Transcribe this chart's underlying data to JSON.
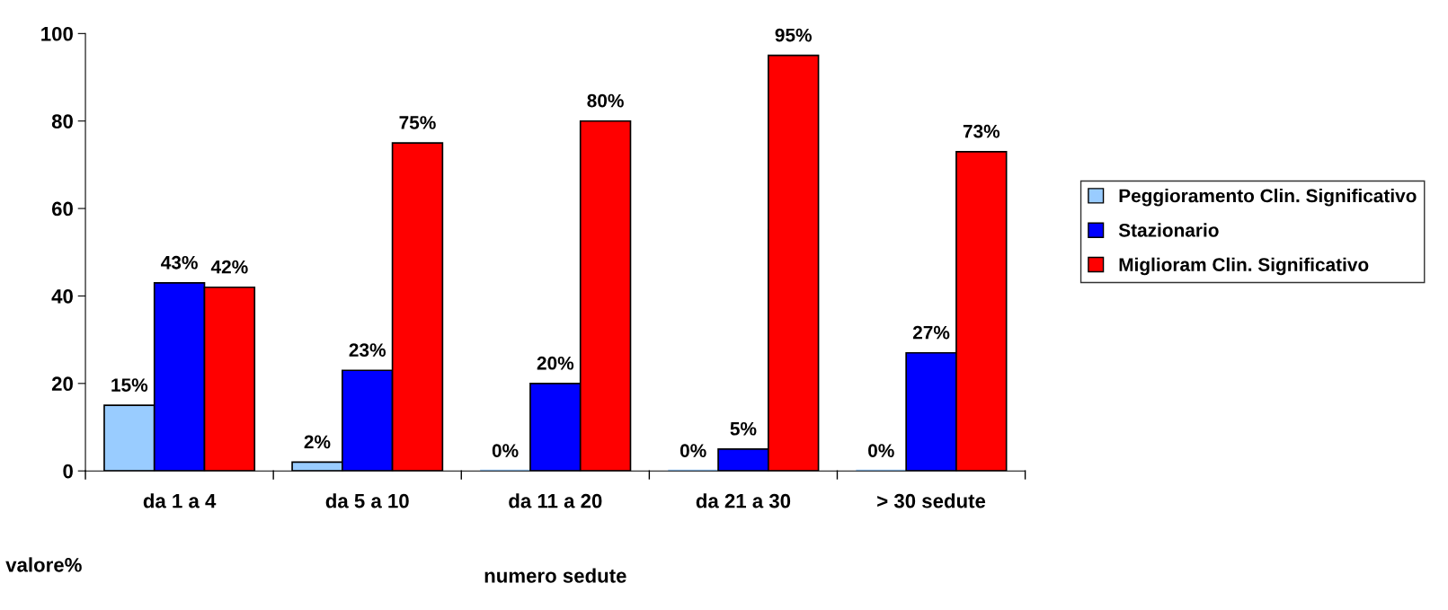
{
  "chart_data": {
    "type": "bar",
    "categories": [
      "da 1 a 4",
      "da 5 a 10",
      "da 11 a 20",
      "da 21 a 30",
      "> 30 sedute"
    ],
    "series": [
      {
        "name": "Peggioramento Clin. Significativo",
        "color": "#99ccff",
        "values": [
          15,
          2,
          0,
          0,
          0
        ],
        "value_labels": [
          "15%",
          "2%",
          "0%",
          "0%",
          "0%"
        ]
      },
      {
        "name": "Stazionario",
        "color": "#0000ff",
        "values": [
          43,
          23,
          20,
          5,
          27
        ],
        "value_labels": [
          "43%",
          "23%",
          "20%",
          "5%",
          "27%"
        ]
      },
      {
        "name": "Miglioram Clin. Significativo",
        "color": "#ff0000",
        "values": [
          42,
          75,
          80,
          95,
          73
        ],
        "value_labels": [
          "42%",
          "75%",
          "80%",
          "95%",
          "73%"
        ]
      }
    ],
    "xlabel": "numero sedute",
    "ylabel": "valore%",
    "ylim": [
      0,
      100
    ],
    "yticks": [
      0,
      20,
      40,
      60,
      80,
      100
    ],
    "grid": false,
    "legend": "right"
  }
}
